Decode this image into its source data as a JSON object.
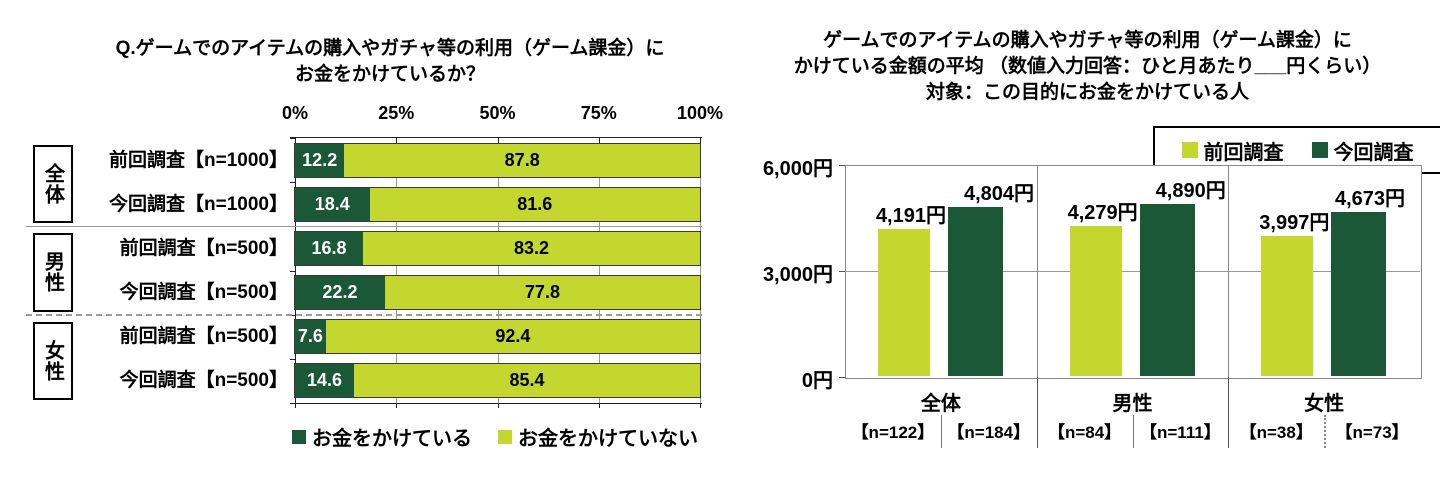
{
  "colors": {
    "spending_dark_green": "#1A5838",
    "not_spending_light_green": "#C3D72E",
    "grid_gray": "#999999",
    "axis_black": "#222222"
  },
  "chart_data": [
    {
      "type": "bar",
      "subtype": "horizontal-stacked-percent",
      "title_lines": [
        "Q.ゲームでのアイテムの購入やガチャ等の利用（ゲーム課金）に",
        "お金をかけているか？"
      ],
      "x_axis": {
        "ticks": [
          "0%",
          "25%",
          "50%",
          "75%",
          "100%"
        ],
        "min": 0,
        "max": 100,
        "position": "top",
        "grid": true
      },
      "series_legend": [
        {
          "name": "お金をかけている",
          "color": "#1A5838"
        },
        {
          "name": "お金をかけていない",
          "color": "#C3D72E"
        }
      ],
      "legend_position": "bottom",
      "groups": [
        {
          "group": "全体",
          "rows": [
            {
              "label": "前回調査【n=1000】",
              "values": {
                "お金をかけている": 12.2,
                "お金をかけていない": 87.8
              }
            },
            {
              "label": "今回調査【n=1000】",
              "values": {
                "お金をかけている": 18.4,
                "お金をかけていない": 81.6
              }
            }
          ]
        },
        {
          "group": "男性",
          "rows": [
            {
              "label": "前回調査【n=500】",
              "values": {
                "お金をかけている": 16.8,
                "お金をかけていない": 83.2
              }
            },
            {
              "label": "今回調査【n=500】",
              "values": {
                "お金をかけている": 22.2,
                "お金をかけていない": 77.8
              }
            }
          ]
        },
        {
          "group": "女性",
          "rows": [
            {
              "label": "前回調査【n=500】",
              "values": {
                "お金をかけている": 7.6,
                "お金をかけていない": 92.4
              }
            },
            {
              "label": "今回調査【n=500】",
              "values": {
                "お金をかけている": 14.6,
                "お金をかけていない": 85.4
              }
            }
          ]
        }
      ]
    },
    {
      "type": "bar",
      "subtype": "vertical-grouped",
      "title_lines": [
        "ゲームでのアイテムの購入やガチャ等の利用（ゲーム課金）に",
        "かけている金額の平均 （数値入力回答：ひと月あたり___円くらい）",
        "対象：この目的にお金をかけている人"
      ],
      "y_axis": {
        "ticks": [
          "6,000円",
          "3,000円",
          "0円"
        ],
        "min": 0,
        "max": 6000,
        "gridline_at": 3000
      },
      "series_legend": [
        {
          "name": "前回調査",
          "color": "#C3D72E"
        },
        {
          "name": "今回調査",
          "color": "#1A5838"
        }
      ],
      "legend_position": "top-right",
      "groups": [
        {
          "group": "全体",
          "bars": [
            {
              "series": "前回調査",
              "value": 4191,
              "value_label": "4,191円",
              "n_label": "【n=122】"
            },
            {
              "series": "今回調査",
              "value": 4804,
              "value_label": "4,804円",
              "n_label": "【n=184】"
            }
          ]
        },
        {
          "group": "男性",
          "bars": [
            {
              "series": "前回調査",
              "value": 4279,
              "value_label": "4,279円",
              "n_label": "【n=84】"
            },
            {
              "series": "今回調査",
              "value": 4890,
              "value_label": "4,890円",
              "n_label": "【n=111】"
            }
          ]
        },
        {
          "group": "女性",
          "bars": [
            {
              "series": "前回調査",
              "value": 3997,
              "value_label": "3,997円",
              "n_label": "【n=38】"
            },
            {
              "series": "今回調査",
              "value": 4673,
              "value_label": "4,673円",
              "n_label": "【n=73】"
            }
          ]
        }
      ]
    }
  ]
}
